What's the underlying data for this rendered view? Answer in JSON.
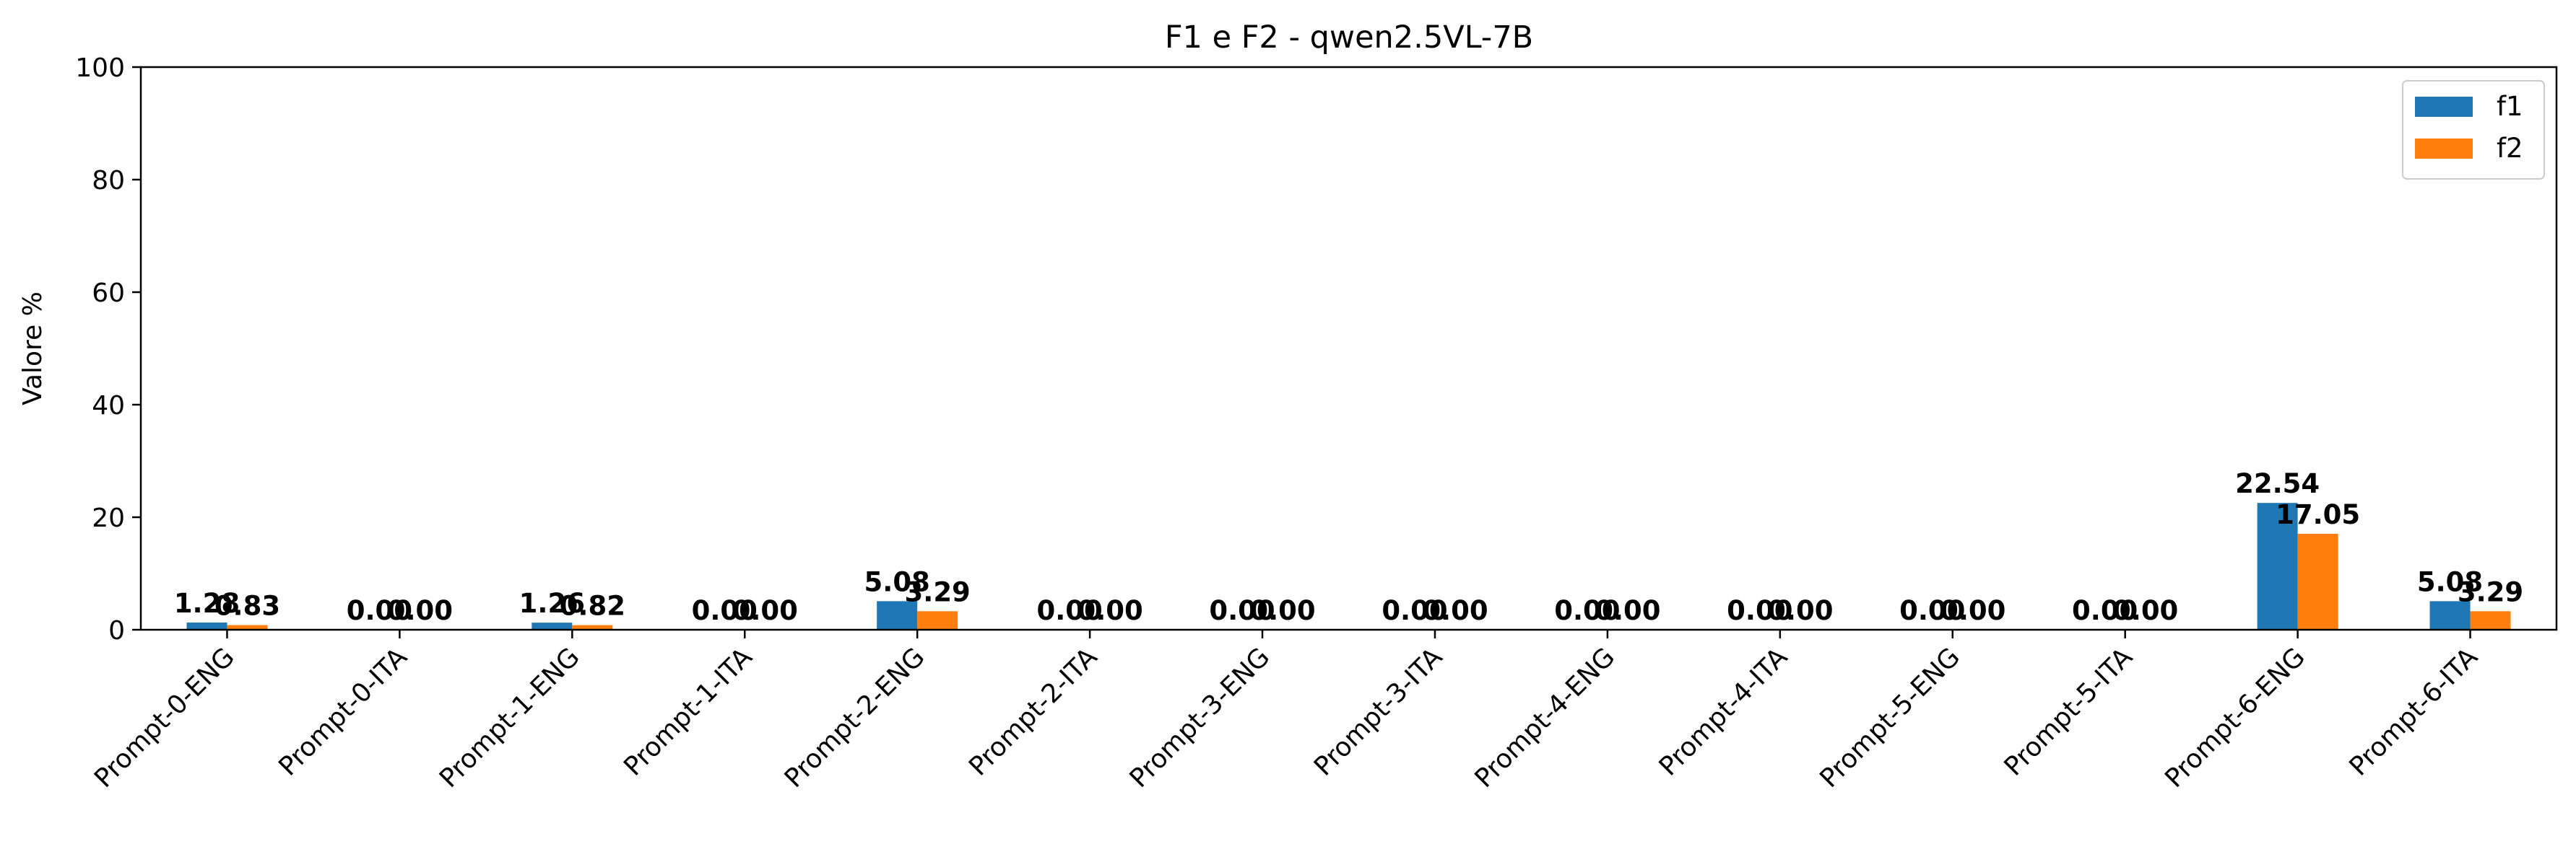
{
  "chart_data": {
    "type": "bar",
    "title": "F1 e F2 - qwen2.5VL-7B",
    "xlabel": "",
    "ylabel": "Valore %",
    "ylim": [
      0,
      100
    ],
    "yticks": [
      0,
      20,
      40,
      60,
      80,
      100
    ],
    "grid": false,
    "legend_position": "top-right",
    "categories": [
      "Prompt-0-ENG",
      "Prompt-0-ITA",
      "Prompt-1-ENG",
      "Prompt-1-ITA",
      "Prompt-2-ENG",
      "Prompt-2-ITA",
      "Prompt-3-ENG",
      "Prompt-3-ITA",
      "Prompt-4-ENG",
      "Prompt-4-ITA",
      "Prompt-5-ENG",
      "Prompt-5-ITA",
      "Prompt-6-ENG",
      "Prompt-6-ITA"
    ],
    "series": [
      {
        "name": "f1",
        "color": "#1f77b4",
        "values": [
          1.28,
          0.0,
          1.26,
          0.0,
          5.08,
          0.0,
          0.0,
          0.0,
          0.0,
          0.0,
          0.0,
          0.0,
          22.54,
          5.08
        ]
      },
      {
        "name": "f2",
        "color": "#ff7f0e",
        "values": [
          0.83,
          0.0,
          0.82,
          0.0,
          3.29,
          0.0,
          0.0,
          0.0,
          0.0,
          0.0,
          0.0,
          0.0,
          17.05,
          3.29
        ]
      }
    ]
  }
}
